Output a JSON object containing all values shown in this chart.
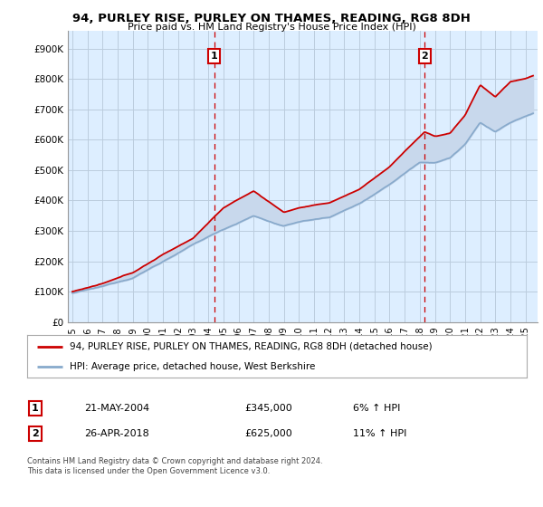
{
  "title": "94, PURLEY RISE, PURLEY ON THAMES, READING, RG8 8DH",
  "subtitle": "Price paid vs. HM Land Registry's House Price Index (HPI)",
  "ylabel_ticks": [
    "£0",
    "£100K",
    "£200K",
    "£300K",
    "£400K",
    "£500K",
    "£600K",
    "£700K",
    "£800K",
    "£900K"
  ],
  "ytick_values": [
    0,
    100000,
    200000,
    300000,
    400000,
    500000,
    600000,
    700000,
    800000,
    900000
  ],
  "ylim": [
    0,
    960000
  ],
  "xlim_start": 1994.7,
  "xlim_end": 2025.8,
  "purchase1_x": 2004.385,
  "purchase1_y": 345000,
  "purchase2_x": 2018.32,
  "purchase2_y": 625000,
  "line_color_price": "#cc0000",
  "line_color_hpi": "#88aacc",
  "fill_color": "#c8d8ec",
  "bg_color": "#ddeeff",
  "fig_bg": "#f5f5f5",
  "legend_label1": "94, PURLEY RISE, PURLEY ON THAMES, READING, RG8 8DH (detached house)",
  "legend_label2": "HPI: Average price, detached house, West Berkshire",
  "table_row1": [
    "1",
    "21-MAY-2004",
    "£345,000",
    "6% ↑ HPI"
  ],
  "table_row2": [
    "2",
    "26-APR-2018",
    "£625,000",
    "11% ↑ HPI"
  ],
  "footer": "Contains HM Land Registry data © Crown copyright and database right 2024.\nThis data is licensed under the Open Government Licence v3.0.",
  "grid_color": "#bbccdd",
  "vline_color": "#cc0000",
  "hpi_anchors_x": [
    1995,
    1997,
    1999,
    2001,
    2003,
    2004,
    2005,
    2007,
    2009,
    2010,
    2012,
    2014,
    2016,
    2018,
    2019,
    2020,
    2021,
    2022,
    2023,
    2024,
    2025.5
  ],
  "hpi_anchors_y": [
    95000,
    115000,
    145000,
    200000,
    255000,
    280000,
    305000,
    350000,
    315000,
    330000,
    345000,
    390000,
    455000,
    530000,
    530000,
    545000,
    590000,
    660000,
    630000,
    660000,
    690000
  ],
  "price_anchors_x": [
    1995,
    1997,
    1999,
    2001,
    2003,
    2004.385,
    2005,
    2007,
    2009,
    2010,
    2012,
    2014,
    2016,
    2018.32,
    2019,
    2020,
    2021,
    2022,
    2023,
    2024,
    2025,
    2025.5
  ],
  "price_anchors_y": [
    100000,
    125000,
    160000,
    220000,
    275000,
    345000,
    375000,
    430000,
    360000,
    375000,
    390000,
    435000,
    510000,
    625000,
    610000,
    620000,
    680000,
    780000,
    740000,
    790000,
    800000,
    810000
  ]
}
